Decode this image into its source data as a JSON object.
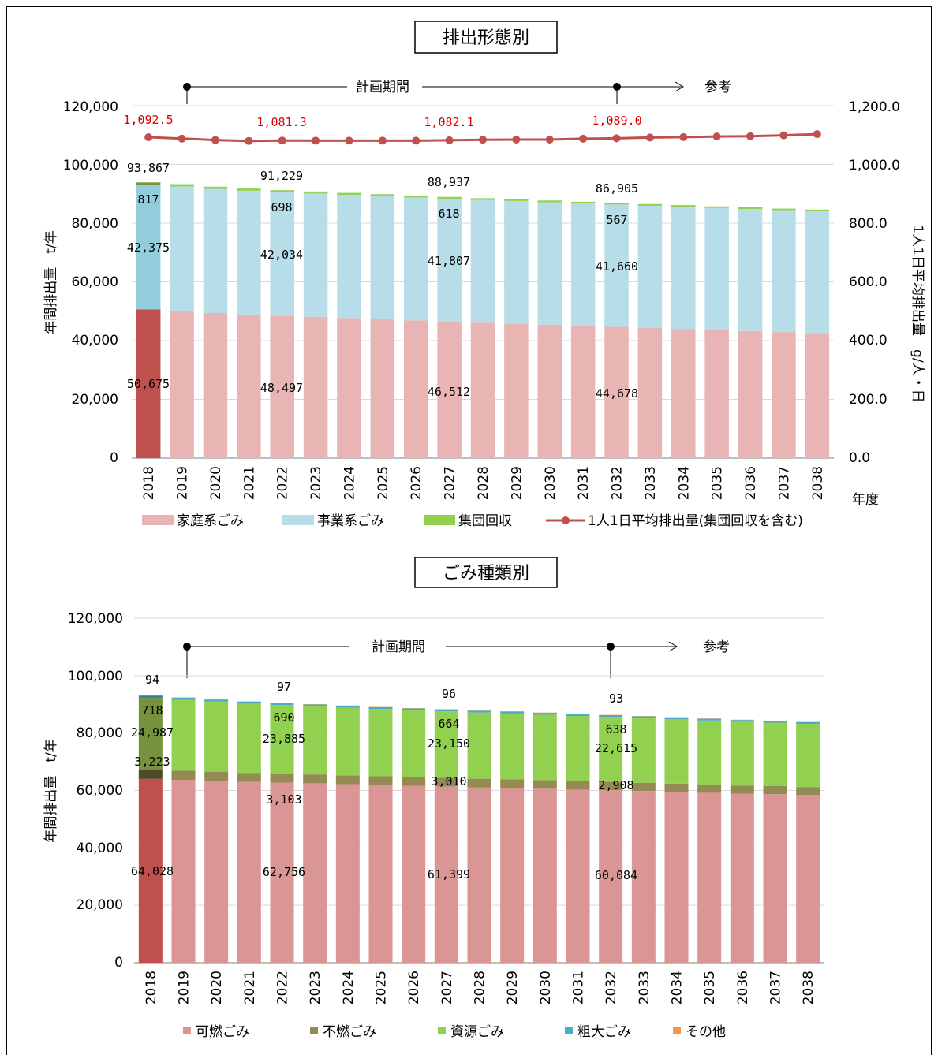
{
  "charts": [
    {
      "title": "排出形態別",
      "annotation": {
        "plan_label": "計画期間",
        "ref_label": "参考"
      },
      "ylabel": "年間排出量　t/年",
      "y2label": "1人1日平均排出量　g/人・日",
      "xunit": "年度",
      "yticks": [
        "0",
        "20,000",
        "40,000",
        "60,000",
        "80,000",
        "100,000",
        "120,000"
      ],
      "y2ticks": [
        "0.0",
        "200.0",
        "400.0",
        "600.0",
        "800.0",
        "1,000.0",
        "1,200.0"
      ],
      "legend": [
        "家庭系ごみ",
        "事業系ごみ",
        "集団回収",
        "1人1日平均排出量(集団回収を含む)"
      ],
      "labels": {
        "a_2018": "50,675",
        "b_2018": "42,375",
        "c_2018": "817",
        "t_2018": "93,867",
        "r_2018": "1,092.5",
        "a_2022": "48,497",
        "b_2022": "42,034",
        "c_2022": "698",
        "t_2022": "91,229",
        "r_2022": "1,081.3",
        "a_2027": "46,512",
        "b_2027": "41,807",
        "c_2027": "618",
        "t_2027": "88,937",
        "r_2027": "1,082.1",
        "a_2032": "44,678",
        "b_2032": "41,660",
        "c_2032": "567",
        "t_2032": "86,905",
        "r_2032": "1,089.0"
      }
    },
    {
      "title": "ごみ種類別",
      "annotation": {
        "plan_label": "計画期間",
        "ref_label": "参考"
      },
      "ylabel": "年間排出量　t/年",
      "yticks": [
        "0",
        "20,000",
        "40,000",
        "60,000",
        "80,000",
        "100,000",
        "120,000"
      ],
      "legend": [
        "可燃ごみ",
        "不燃ごみ",
        "資源ごみ",
        "粗大ごみ",
        "その他"
      ],
      "labels": {
        "a_2018": "64,028",
        "b_2018": "3,223",
        "c_2018": "24,987",
        "d_2018": "718",
        "e_2018": "94",
        "a_2022": "62,756",
        "b_2022": "3,103",
        "c_2022": "23,885",
        "d_2022": "690",
        "e_2022": "97",
        "a_2027": "61,399",
        "b_2027": "3,010",
        "c_2027": "23,150",
        "d_2027": "664",
        "e_2027": "96",
        "a_2032": "60,084",
        "b_2032": "2,908",
        "c_2032": "22,615",
        "d_2032": "638",
        "e_2032": "93"
      }
    }
  ],
  "chart_data": [
    {
      "type": "bar",
      "stacked": true,
      "title": "排出形態別",
      "categories": [
        "2018",
        "2019",
        "2020",
        "2021",
        "2022",
        "2023",
        "2024",
        "2025",
        "2026",
        "2027",
        "2028",
        "2029",
        "2030",
        "2031",
        "2032",
        "2033",
        "2034",
        "2035",
        "2036",
        "2037",
        "2038"
      ],
      "series": [
        {
          "name": "家庭系ごみ",
          "color": "#e8b4b4",
          "color_2018": "#c0504d",
          "values": [
            50675,
            50200,
            49400,
            48900,
            48497,
            48100,
            47700,
            47300,
            46900,
            46512,
            46100,
            45800,
            45400,
            45000,
            44678,
            44300,
            44000,
            43600,
            43300,
            42900,
            42600
          ]
        },
        {
          "name": "事業系ごみ",
          "color": "#b7dde8",
          "color_2018": "#92cddc",
          "values": [
            42375,
            42300,
            42250,
            42150,
            42034,
            42000,
            41950,
            41900,
            41850,
            41807,
            41780,
            41750,
            41720,
            41690,
            41660,
            41630,
            41600,
            41570,
            41540,
            41510,
            41480
          ]
        },
        {
          "name": "集団回収",
          "color": "#92d050",
          "color_2018": "#76923c",
          "values": [
            817,
            790,
            760,
            730,
            698,
            680,
            665,
            650,
            635,
            618,
            610,
            600,
            590,
            580,
            567,
            560,
            550,
            545,
            540,
            535,
            530
          ]
        }
      ],
      "line": {
        "name": "1人1日平均排出量(集団回収を含む)",
        "color": "#c0504d",
        "axis": "right",
        "values": [
          1092.5,
          1088.0,
          1083.0,
          1080.0,
          1081.3,
          1081.0,
          1081.0,
          1081.0,
          1081.0,
          1082.1,
          1084.0,
          1084.5,
          1084.5,
          1087.5,
          1089.0,
          1091.5,
          1093.0,
          1095.0,
          1096.0,
          1099.0,
          1103.0
        ]
      },
      "ylim": [
        0,
        120000
      ],
      "y2lim": [
        0,
        1200
      ],
      "ylabel": "年間排出量　t/年",
      "y2label": "1人1日平均排出量　g/人・日",
      "xlabel": "年度",
      "grid": true,
      "legend_position": "bottom"
    },
    {
      "type": "bar",
      "stacked": true,
      "title": "ごみ種類別",
      "categories": [
        "2018",
        "2019",
        "2020",
        "2021",
        "2022",
        "2023",
        "2024",
        "2025",
        "2026",
        "2027",
        "2028",
        "2029",
        "2030",
        "2031",
        "2032",
        "2033",
        "2034",
        "2035",
        "2036",
        "2037",
        "2038"
      ],
      "series": [
        {
          "name": "可燃ごみ",
          "color": "#da9694",
          "color_2018": "#c0504d",
          "values": [
            64028,
            63700,
            63400,
            63000,
            62756,
            62500,
            62200,
            61900,
            61650,
            61399,
            61100,
            60900,
            60600,
            60300,
            60084,
            59800,
            59500,
            59200,
            58900,
            58700,
            58400
          ]
        },
        {
          "name": "不燃ごみ",
          "color": "#948a54",
          "color_2018": "#4f4a2a",
          "values": [
            3223,
            3190,
            3160,
            3130,
            3103,
            3080,
            3060,
            3040,
            3020,
            3010,
            2990,
            2970,
            2950,
            2930,
            2908,
            2890,
            2870,
            2850,
            2830,
            2810,
            2790
          ]
        },
        {
          "name": "資源ごみ",
          "color": "#92d050",
          "color_2018": "#76923c",
          "values": [
            24987,
            24700,
            24400,
            24100,
            23885,
            23700,
            23550,
            23400,
            23270,
            23150,
            23040,
            22930,
            22830,
            22720,
            22615,
            22510,
            22400,
            22300,
            22200,
            22100,
            22000
          ]
        },
        {
          "name": "粗大ごみ",
          "color": "#4bacc6",
          "color_2018": "#31849b",
          "values": [
            718,
            710,
            700,
            695,
            690,
            684,
            678,
            673,
            668,
            664,
            660,
            655,
            650,
            645,
            638,
            635,
            630,
            625,
            620,
            615,
            610
          ]
        },
        {
          "name": "その他",
          "color": "#f79646",
          "color_2018": "#e46c0a",
          "values": [
            94,
            95,
            96,
            96,
            97,
            97,
            96,
            96,
            96,
            96,
            95,
            95,
            94,
            94,
            93,
            93,
            92,
            92,
            91,
            91,
            90
          ]
        }
      ],
      "ylim": [
        0,
        120000
      ],
      "ylabel": "年間排出量　t/年",
      "grid": true,
      "legend_position": "bottom"
    }
  ]
}
